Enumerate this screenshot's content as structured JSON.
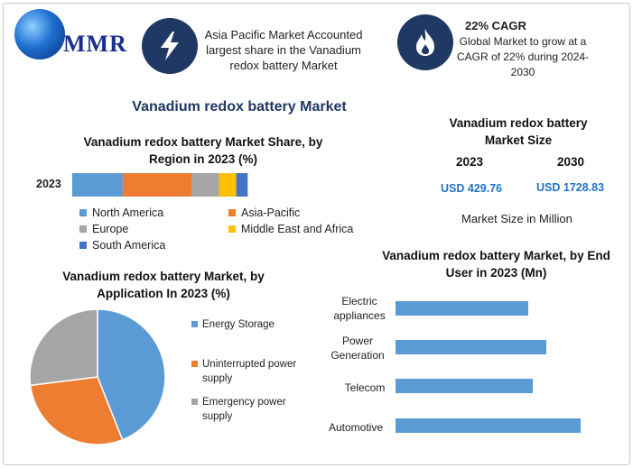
{
  "brand": {
    "logo_text": "MMR"
  },
  "highlights": [
    {
      "icon": "lightning-icon",
      "text": "Asia Pacific Market Accounted largest share in the Vanadium redox battery Market"
    },
    {
      "icon": "flame-icon",
      "title": "22% CAGR",
      "text": "Global Market to grow at a CAGR of 22% during 2024-2030"
    }
  ],
  "main_title": "Vanadium redox battery Market",
  "market_size": {
    "title": "Vanadium redox battery Market Size",
    "years": [
      "2023",
      "2030"
    ],
    "values": [
      "USD 429.76",
      "USD 1728.83"
    ],
    "note": "Market Size in Million"
  },
  "colors": {
    "north_america": "#5b9bd5",
    "asia_pacific": "#ed7d31",
    "europe": "#a5a5a5",
    "mea": "#ffc000",
    "south_america": "#4472c4",
    "navy": "#1f3864",
    "end_user_bar": "#5b9bd5"
  },
  "chart_data": [
    {
      "type": "bar",
      "orientation": "horizontal-stacked",
      "title": "Vanadium redox battery Market Share, by Region in 2023 (%)",
      "categories": [
        "2023"
      ],
      "series": [
        {
          "name": "North America",
          "values": [
            22
          ]
        },
        {
          "name": "Asia-Pacific",
          "values": [
            30
          ]
        },
        {
          "name": "Europe",
          "values": [
            12
          ]
        },
        {
          "name": "Middle East and Africa",
          "values": [
            7.5
          ]
        },
        {
          "name": "South America",
          "values": [
            5
          ]
        }
      ],
      "legend_position": "bottom"
    },
    {
      "type": "pie",
      "title": "Vanadium redox battery Market, by Application In 2023 (%)",
      "labels": [
        "Energy Storage",
        "Uninterrupted power supply",
        "Emergency power supply"
      ],
      "values": [
        44,
        29,
        27
      ],
      "legend_position": "right"
    },
    {
      "type": "bar",
      "orientation": "horizontal",
      "title": "Vanadium redox battery Market, by End User in 2023 (Mn)",
      "categories": [
        "Electric appliances",
        "Power Generation",
        "Telecom",
        "Automotive"
      ],
      "values": [
        147,
        167,
        152,
        205
      ]
    }
  ]
}
